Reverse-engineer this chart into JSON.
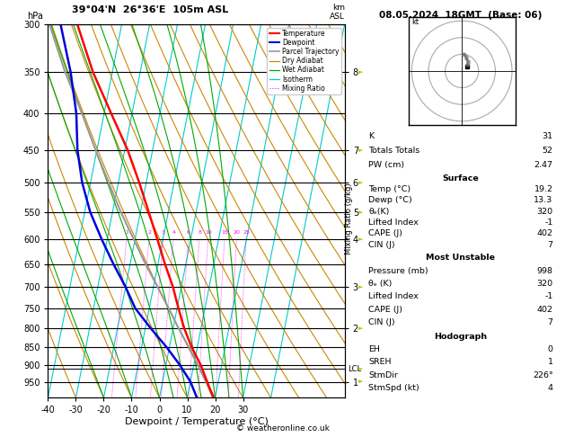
{
  "title_left": "39°04'N  26°36'E  105m ASL",
  "title_right": "08.05.2024  18GMT  (Base: 06)",
  "xlabel": "Dewpoint / Temperature (°C)",
  "ylabel_left": "hPa",
  "footer": "© weatheronline.co.uk",
  "pressure_levels": [
    300,
    350,
    400,
    450,
    500,
    550,
    600,
    650,
    700,
    750,
    800,
    850,
    900,
    950
  ],
  "p_min": 300,
  "p_max": 1000,
  "t_min": -40,
  "t_max": 40,
  "skew": 22,
  "isotherm_temps": [
    -40,
    -30,
    -20,
    -10,
    0,
    10,
    20,
    30,
    40
  ],
  "dry_adiabat_thetas": [
    -40,
    -30,
    -20,
    -10,
    0,
    10,
    20,
    30,
    40,
    50,
    60,
    70,
    80,
    90,
    100,
    110,
    120,
    130,
    140,
    150,
    160,
    170,
    180,
    190
  ],
  "wet_adiabat_t0s": [
    -20,
    -10,
    0,
    5,
    10,
    15,
    20,
    25,
    30
  ],
  "mixing_ratio_values": [
    1,
    2,
    3,
    4,
    6,
    8,
    10,
    15,
    20,
    25
  ],
  "km_ticks": {
    "8": 350,
    "7": 450,
    "6": 500,
    "5": 550,
    "4": 600,
    "3": 700,
    "2": 800,
    "1": 950
  },
  "lcl_pressure": 912,
  "temperature_profile": {
    "pressure": [
      998,
      950,
      900,
      850,
      800,
      750,
      700,
      650,
      600,
      550,
      500,
      450,
      400,
      350,
      300
    ],
    "temp": [
      19.2,
      16.0,
      12.5,
      8.0,
      4.0,
      0.5,
      -3.0,
      -7.5,
      -12.0,
      -17.0,
      -22.5,
      -29.0,
      -37.5,
      -47.0,
      -56.0
    ]
  },
  "dewpoint_profile": {
    "pressure": [
      998,
      950,
      900,
      850,
      800,
      750,
      700,
      650,
      600,
      550,
      500,
      450,
      400,
      350,
      300
    ],
    "temp": [
      13.3,
      10.0,
      5.0,
      -1.0,
      -8.0,
      -15.0,
      -20.0,
      -26.0,
      -32.0,
      -38.0,
      -43.0,
      -47.0,
      -50.0,
      -55.0,
      -62.0
    ]
  },
  "parcel_profile": {
    "pressure": [
      998,
      950,
      912,
      850,
      800,
      750,
      700,
      650,
      600,
      550,
      500,
      450,
      400,
      350,
      300
    ],
    "temp": [
      19.2,
      15.5,
      12.5,
      7.0,
      2.0,
      -3.0,
      -8.5,
      -14.5,
      -20.5,
      -27.0,
      -33.5,
      -40.5,
      -48.0,
      -57.0,
      -66.0
    ]
  },
  "stats": {
    "K": 31,
    "Totals_Totals": 52,
    "PW_cm": "2.47",
    "Surf_Temp": "19.2",
    "Surf_Dewp": "13.3",
    "Surf_theta_e": 320,
    "Surf_LI": -1,
    "Surf_CAPE": 402,
    "Surf_CIN": 7,
    "MU_Press": 998,
    "MU_theta_e": 320,
    "MU_LI": -1,
    "MU_CAPE": 402,
    "MU_CIN": 7,
    "EH": 0,
    "SREH": 1,
    "StmDir": "226°",
    "StmSpd_kt": 4
  },
  "colors": {
    "temp": "#ff0000",
    "dewp": "#0000dd",
    "parcel": "#999999",
    "dry_adi": "#cc8800",
    "wet_adi": "#00aa00",
    "isotherm": "#00cccc",
    "mix_rat": "#ff00ff",
    "bg": "#ffffff",
    "hodo_c": "#aaaaaa"
  },
  "hodo_wind": {
    "direction": [
      226,
      220,
      215,
      210,
      200,
      195,
      190,
      185
    ],
    "speed": [
      4,
      5,
      6,
      7,
      8,
      9,
      10,
      10
    ]
  }
}
